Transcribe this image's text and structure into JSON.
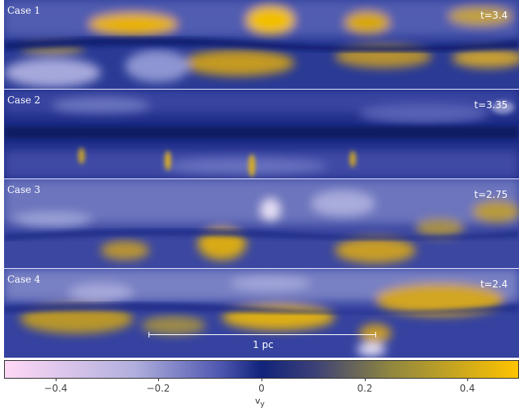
{
  "panels": [
    {
      "label": "Case 1",
      "time": "t=3.4"
    },
    {
      "label": "Case 2",
      "time": "t=3.35"
    },
    {
      "label": "Case 3",
      "time": "t=2.75"
    },
    {
      "label": "Case 4",
      "time": "t=2.4"
    }
  ],
  "scalebar": {
    "label": "1 pc"
  },
  "colorbar": {
    "ticks": [
      "−0.4",
      "−0.2",
      "0",
      "0.2",
      "0.4"
    ],
    "variable": "v",
    "variable_sub": "y",
    "range": [
      -0.5,
      0.5
    ],
    "colors": {
      "negative": "#ffd8f6",
      "zero": "#11237b",
      "positive": "#ffc400"
    }
  }
}
